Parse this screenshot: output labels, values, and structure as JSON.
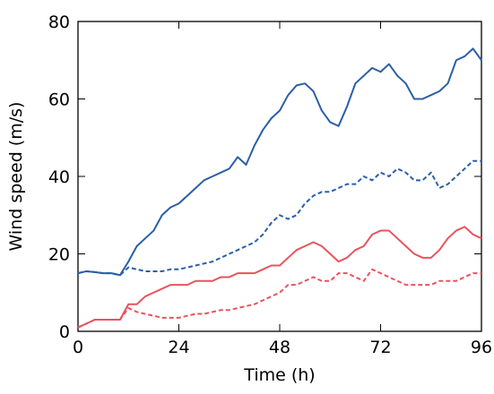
{
  "chart_data": {
    "type": "line",
    "xlabel": "Time (h)",
    "ylabel": "Wind speed (m/s)",
    "x": [
      0,
      2,
      4,
      6,
      8,
      10,
      12,
      14,
      16,
      18,
      20,
      22,
      24,
      26,
      28,
      30,
      32,
      34,
      36,
      38,
      40,
      42,
      44,
      46,
      48,
      50,
      52,
      54,
      56,
      58,
      60,
      62,
      64,
      66,
      68,
      70,
      72,
      74,
      76,
      78,
      80,
      82,
      84,
      86,
      88,
      90,
      92,
      94,
      96
    ],
    "series": [
      {
        "color": "#2a5ea8",
        "dashed": false,
        "values": [
          15,
          15.5,
          15.3,
          15,
          15,
          14.5,
          18,
          22,
          24,
          26,
          30,
          32,
          33,
          35,
          37,
          39,
          40,
          41,
          42,
          45,
          43,
          48,
          52,
          55,
          57,
          61,
          63.5,
          64,
          62,
          57,
          54,
          53,
          58,
          64,
          66,
          68,
          67,
          69,
          66,
          64,
          60,
          60,
          61,
          62,
          64,
          70,
          71,
          73,
          70
        ]
      },
      {
        "color": "#2a5ea8",
        "dashed": true,
        "values": [
          15,
          15.5,
          15.3,
          15,
          15,
          14.5,
          16.5,
          16,
          15.5,
          15.5,
          15.5,
          16,
          16,
          16.5,
          17,
          17.5,
          18,
          19,
          20,
          21,
          22,
          23,
          25,
          28,
          30,
          29,
          30,
          33,
          35,
          36,
          36,
          37,
          38,
          38,
          40,
          39,
          41,
          40,
          42,
          41,
          39,
          39,
          41,
          37,
          38,
          40,
          42,
          44,
          44
        ]
      },
      {
        "color": "#e8535d",
        "dashed": false,
        "values": [
          1,
          2,
          3,
          3,
          3,
          3,
          7,
          7,
          9,
          10,
          11,
          12,
          12,
          12,
          13,
          13,
          13,
          14,
          14,
          15,
          15,
          15,
          16,
          17,
          17,
          19,
          21,
          22,
          23,
          22,
          20,
          18,
          19,
          21,
          22,
          25,
          26,
          26,
          24,
          22,
          20,
          19,
          19,
          21,
          24,
          26,
          27,
          25,
          24
        ]
      },
      {
        "color": "#e8535d",
        "dashed": true,
        "values": [
          1,
          2,
          3,
          3,
          3,
          3,
          6,
          5,
          4.5,
          4,
          3.5,
          3.5,
          3.5,
          4,
          4.5,
          4.5,
          5,
          5.5,
          5.5,
          6,
          6.5,
          7,
          8,
          9,
          10,
          12,
          12,
          13,
          14,
          13,
          13,
          15,
          15,
          14,
          13,
          16,
          15,
          14,
          13,
          12,
          12,
          12,
          12,
          13,
          13,
          13,
          14,
          15,
          15
        ]
      }
    ],
    "xlim": [
      0,
      96
    ],
    "xticks": [
      0,
      24,
      48,
      72,
      96
    ],
    "ylim": [
      0,
      80
    ],
    "yticks": [
      0,
      20,
      40,
      60,
      80
    ]
  }
}
